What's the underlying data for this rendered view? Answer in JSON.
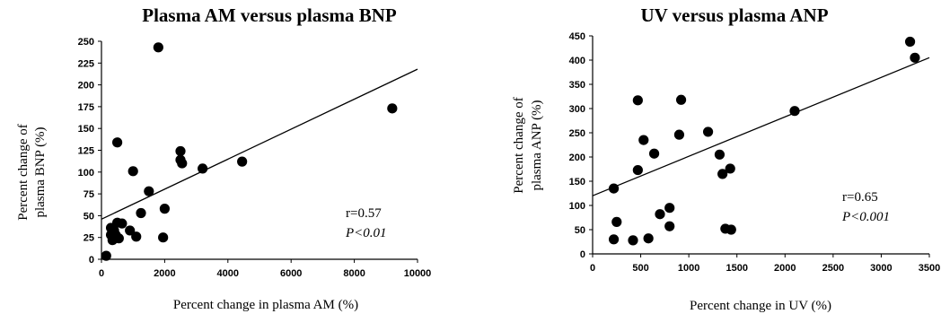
{
  "chart_data": [
    {
      "type": "scatter",
      "title": "Plasma AM versus plasma BNP",
      "xlabel": "Percent change in plasma AM (%)",
      "ylabel_line1": "Percent change of",
      "ylabel_line2": "plasma BNP (%)",
      "xlim": [
        0,
        10000
      ],
      "ylim": [
        0,
        250
      ],
      "xticks": [
        0,
        2000,
        4000,
        6000,
        8000,
        10000
      ],
      "yticks": [
        0,
        25,
        50,
        75,
        100,
        125,
        150,
        175,
        200,
        225,
        250
      ],
      "grid": false,
      "stats": {
        "r": "r=0.57",
        "p": "P<0.01"
      },
      "trendline": {
        "x": [
          0,
          10000
        ],
        "y": [
          46,
          218
        ]
      },
      "points": [
        {
          "x": 1800,
          "y": 243
        },
        {
          "x": 9200,
          "y": 173
        },
        {
          "x": 500,
          "y": 134
        },
        {
          "x": 2500,
          "y": 124
        },
        {
          "x": 2550,
          "y": 110
        },
        {
          "x": 2500,
          "y": 114
        },
        {
          "x": 4450,
          "y": 112
        },
        {
          "x": 3200,
          "y": 104
        },
        {
          "x": 1000,
          "y": 101
        },
        {
          "x": 1500,
          "y": 78
        },
        {
          "x": 2000,
          "y": 58
        },
        {
          "x": 1250,
          "y": 53
        },
        {
          "x": 500,
          "y": 42
        },
        {
          "x": 650,
          "y": 41
        },
        {
          "x": 300,
          "y": 36
        },
        {
          "x": 400,
          "y": 33
        },
        {
          "x": 900,
          "y": 33
        },
        {
          "x": 300,
          "y": 28
        },
        {
          "x": 450,
          "y": 28
        },
        {
          "x": 1100,
          "y": 26
        },
        {
          "x": 550,
          "y": 24
        },
        {
          "x": 350,
          "y": 22
        },
        {
          "x": 1950,
          "y": 25
        },
        {
          "x": 150,
          "y": 4
        }
      ]
    },
    {
      "type": "scatter",
      "title": "UV versus plasma ANP",
      "xlabel": "Percent change in UV (%)",
      "ylabel_line1": "Percent change of",
      "ylabel_line2": "plasma ANP (%)",
      "xlim": [
        0,
        3500
      ],
      "ylim": [
        0,
        450
      ],
      "xticks": [
        0,
        500,
        1000,
        1500,
        2000,
        2500,
        3000,
        3500
      ],
      "yticks": [
        0,
        50,
        100,
        150,
        200,
        250,
        300,
        350,
        400,
        450
      ],
      "grid": false,
      "stats": {
        "r": "r=0.65",
        "p": "P<0.001"
      },
      "trendline": {
        "x": [
          0,
          3500
        ],
        "y": [
          120,
          405
        ]
      },
      "points": [
        {
          "x": 3300,
          "y": 438
        },
        {
          "x": 3350,
          "y": 405
        },
        {
          "x": 470,
          "y": 317
        },
        {
          "x": 920,
          "y": 318
        },
        {
          "x": 2100,
          "y": 295
        },
        {
          "x": 1200,
          "y": 252
        },
        {
          "x": 900,
          "y": 246
        },
        {
          "x": 530,
          "y": 235
        },
        {
          "x": 640,
          "y": 207
        },
        {
          "x": 1320,
          "y": 205
        },
        {
          "x": 1430,
          "y": 176
        },
        {
          "x": 470,
          "y": 173
        },
        {
          "x": 1350,
          "y": 165
        },
        {
          "x": 220,
          "y": 135
        },
        {
          "x": 800,
          "y": 95
        },
        {
          "x": 700,
          "y": 82
        },
        {
          "x": 250,
          "y": 66
        },
        {
          "x": 800,
          "y": 57
        },
        {
          "x": 1380,
          "y": 52
        },
        {
          "x": 1440,
          "y": 50
        },
        {
          "x": 220,
          "y": 30
        },
        {
          "x": 580,
          "y": 32
        },
        {
          "x": 420,
          "y": 28
        }
      ]
    }
  ]
}
